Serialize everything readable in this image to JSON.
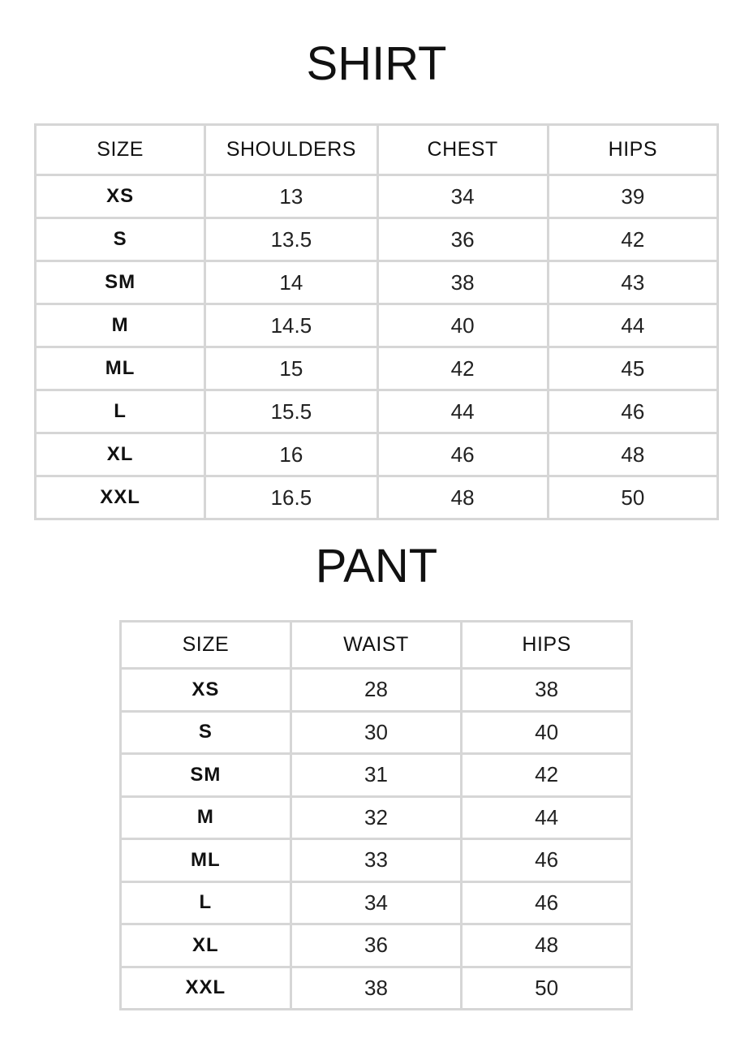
{
  "shirt": {
    "title": "SHIRT",
    "headers": [
      "SIZE",
      "SHOULDERS",
      "CHEST",
      "HIPS"
    ],
    "rows": [
      [
        "XS",
        "13",
        "34",
        "39"
      ],
      [
        "S",
        "13.5",
        "36",
        "42"
      ],
      [
        "SM",
        "14",
        "38",
        "43"
      ],
      [
        "M",
        "14.5",
        "40",
        "44"
      ],
      [
        "ML",
        "15",
        "42",
        "45"
      ],
      [
        "L",
        "15.5",
        "44",
        "46"
      ],
      [
        "XL",
        "16",
        "46",
        "48"
      ],
      [
        "XXL",
        "16.5",
        "48",
        "50"
      ]
    ]
  },
  "pant": {
    "title": "PANT",
    "headers": [
      "SIZE",
      "WAIST",
      "HIPS"
    ],
    "rows": [
      [
        "XS",
        "28",
        "38"
      ],
      [
        "S",
        "30",
        "40"
      ],
      [
        "SM",
        "31",
        "42"
      ],
      [
        "M",
        "32",
        "44"
      ],
      [
        "ML",
        "33",
        "46"
      ],
      [
        "L",
        "34",
        "46"
      ],
      [
        "XL",
        "36",
        "48"
      ],
      [
        "XXL",
        "38",
        "50"
      ]
    ]
  }
}
